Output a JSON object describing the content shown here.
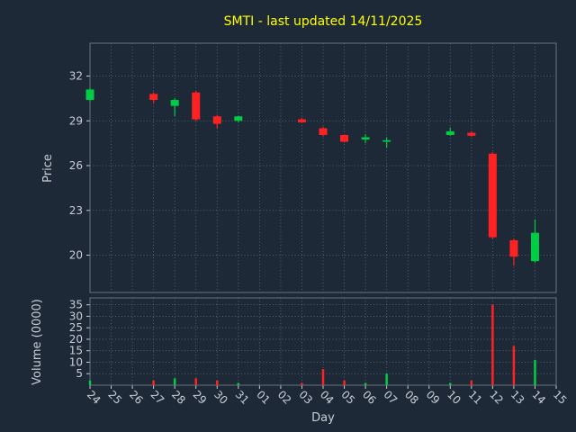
{
  "title": "SMTI - last updated 14/11/2025",
  "axes": {
    "price_label": "Price",
    "volume_label": "Volume (0000)",
    "x_label": "Day"
  },
  "colors": {
    "background": "#1d2936",
    "title": "#ffff00",
    "text": "#c9ced6",
    "grid": "#9fb0c0",
    "frame": "#66727f",
    "up": "#00cc44",
    "down": "#ff2222"
  },
  "chart_data": {
    "type": "candlestick",
    "title": "SMTI - last updated 14/11/2025",
    "xlabel": "Day",
    "ylabel_price": "Price",
    "ylabel_volume": "Volume (0000)",
    "legend": "none",
    "grid": "dotted",
    "x_tick_labels": [
      "24",
      "25",
      "26",
      "27",
      "28",
      "29",
      "30",
      "31",
      "01",
      "02",
      "03",
      "04",
      "05",
      "06",
      "07",
      "08",
      "09",
      "10",
      "11",
      "12",
      "13",
      "14",
      "15"
    ],
    "price_ticks": [
      20,
      23,
      26,
      29,
      32
    ],
    "volume_ticks": [
      5,
      10,
      15,
      20,
      25,
      30,
      35
    ],
    "price_ylim": [
      17.5,
      34.2
    ],
    "volume_ylim": [
      0,
      38
    ],
    "candles": [
      {
        "day": "24",
        "open": 30.4,
        "high": 31.2,
        "low": 30.3,
        "close": 31.1,
        "volume": 2
      },
      {
        "day": "27",
        "open": 30.8,
        "high": 30.9,
        "low": 30.2,
        "close": 30.4,
        "volume": 2
      },
      {
        "day": "28",
        "open": 30.0,
        "high": 30.5,
        "low": 29.3,
        "close": 30.4,
        "volume": 3
      },
      {
        "day": "29",
        "open": 30.9,
        "high": 31.0,
        "low": 29.0,
        "close": 29.1,
        "volume": 3
      },
      {
        "day": "30",
        "open": 29.3,
        "high": 29.4,
        "low": 28.5,
        "close": 28.8,
        "volume": 2
      },
      {
        "day": "31",
        "open": 29.0,
        "high": 29.35,
        "low": 28.9,
        "close": 29.3,
        "volume": 1
      },
      {
        "day": "03",
        "open": 29.1,
        "high": 29.2,
        "low": 28.85,
        "close": 28.9,
        "volume": 1
      },
      {
        "day": "04",
        "open": 28.5,
        "high": 28.6,
        "low": 27.95,
        "close": 28.05,
        "volume": 7
      },
      {
        "day": "05",
        "open": 28.05,
        "high": 28.1,
        "low": 27.55,
        "close": 27.6,
        "volume": 2
      },
      {
        "day": "06",
        "open": 27.75,
        "high": 28.1,
        "low": 27.5,
        "close": 27.9,
        "volume": 1
      },
      {
        "day": "07",
        "open": 27.6,
        "high": 27.9,
        "low": 27.2,
        "close": 27.7,
        "volume": 5
      },
      {
        "day": "10",
        "open": 28.05,
        "high": 28.55,
        "low": 28.0,
        "close": 28.3,
        "volume": 1
      },
      {
        "day": "11",
        "open": 28.2,
        "high": 28.3,
        "low": 27.95,
        "close": 28.0,
        "volume": 2
      },
      {
        "day": "12",
        "open": 26.8,
        "high": 26.9,
        "low": 21.1,
        "close": 21.2,
        "volume": 35
      },
      {
        "day": "13",
        "open": 21.0,
        "high": 21.1,
        "low": 19.3,
        "close": 19.9,
        "volume": 17
      },
      {
        "day": "14",
        "open": 19.6,
        "high": 22.4,
        "low": 19.5,
        "close": 21.5,
        "volume": 11
      }
    ]
  }
}
